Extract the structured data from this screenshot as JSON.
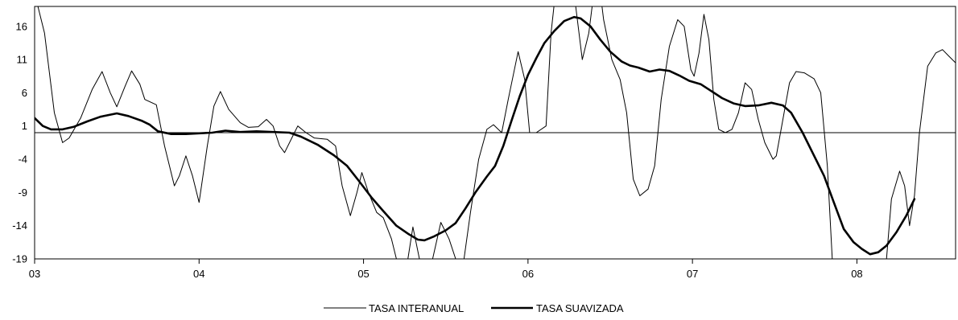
{
  "chart_data": {
    "type": "line",
    "title": "",
    "xlabel": "",
    "ylabel": "",
    "xlim": [
      2003.0,
      2008.6
    ],
    "ylim": [
      -19,
      19
    ],
    "yticks": [
      16,
      11,
      6,
      1,
      -4,
      -9,
      -14,
      -19
    ],
    "xticks": [
      {
        "value": 2003.0,
        "label": "03"
      },
      {
        "value": 2004.0,
        "label": "04"
      },
      {
        "value": 2005.0,
        "label": "05"
      },
      {
        "value": 2006.0,
        "label": "06"
      },
      {
        "value": 2007.0,
        "label": "07"
      },
      {
        "value": 2008.0,
        "label": "08"
      }
    ],
    "reference_line": 0,
    "legend_position": "bottom-center",
    "series": [
      {
        "name": "TASA INTERANUAL",
        "style": "thin",
        "points": [
          [
            2003.0,
            21
          ],
          [
            2003.06,
            15
          ],
          [
            2003.12,
            3
          ],
          [
            2003.17,
            -1.5
          ],
          [
            2003.21,
            -0.8
          ],
          [
            2003.28,
            2.2
          ],
          [
            2003.35,
            6.5
          ],
          [
            2003.41,
            9.2
          ],
          [
            2003.46,
            6
          ],
          [
            2003.5,
            3.9
          ],
          [
            2003.55,
            7
          ],
          [
            2003.59,
            9.3
          ],
          [
            2003.64,
            7.3
          ],
          [
            2003.67,
            5
          ],
          [
            2003.74,
            4.2
          ],
          [
            2003.79,
            -2
          ],
          [
            2003.85,
            -8
          ],
          [
            2003.88,
            -6.5
          ],
          [
            2003.92,
            -3.5
          ],
          [
            2003.96,
            -6.5
          ],
          [
            2004.0,
            -10.5
          ],
          [
            2004.05,
            -2
          ],
          [
            2004.09,
            4
          ],
          [
            2004.13,
            6.2
          ],
          [
            2004.18,
            3.5
          ],
          [
            2004.25,
            1.5
          ],
          [
            2004.3,
            0.8
          ],
          [
            2004.36,
            0.9
          ],
          [
            2004.41,
            2
          ],
          [
            2004.45,
            1
          ],
          [
            2004.49,
            -2
          ],
          [
            2004.52,
            -3
          ],
          [
            2004.57,
            -0.5
          ],
          [
            2004.6,
            1
          ],
          [
            2004.65,
            0
          ],
          [
            2004.7,
            -0.8
          ],
          [
            2004.78,
            -1
          ],
          [
            2004.83,
            -2
          ],
          [
            2004.87,
            -8
          ],
          [
            2004.92,
            -12.5
          ],
          [
            2004.96,
            -9
          ],
          [
            2004.99,
            -6
          ],
          [
            2005.03,
            -9
          ],
          [
            2005.08,
            -12
          ],
          [
            2005.12,
            -12.8
          ],
          [
            2005.17,
            -16
          ],
          [
            2005.2,
            -19
          ],
          [
            2005.24,
            -26
          ],
          [
            2005.27,
            -19
          ],
          [
            2005.3,
            -14.2
          ],
          [
            2005.34,
            -19
          ],
          [
            2005.38,
            -25
          ],
          [
            2005.42,
            -19
          ],
          [
            2005.47,
            -13.5
          ],
          [
            2005.52,
            -16
          ],
          [
            2005.56,
            -19
          ],
          [
            2005.6,
            -21
          ],
          [
            2005.65,
            -12
          ],
          [
            2005.7,
            -4
          ],
          [
            2005.75,
            0.5
          ],
          [
            2005.79,
            1.2
          ],
          [
            2005.84,
            0
          ],
          [
            2005.88,
            5
          ],
          [
            2005.94,
            12.2
          ],
          [
            2005.98,
            8
          ],
          [
            2006.01,
            0
          ],
          [
            2006.05,
            0
          ],
          [
            2006.11,
            1
          ],
          [
            2006.14,
            15
          ],
          [
            2006.18,
            24
          ],
          [
            2006.23,
            30
          ],
          [
            2006.28,
            21
          ],
          [
            2006.33,
            11
          ],
          [
            2006.37,
            15
          ],
          [
            2006.42,
            25
          ],
          [
            2006.46,
            17
          ],
          [
            2006.51,
            11
          ],
          [
            2006.56,
            8
          ],
          [
            2006.6,
            3
          ],
          [
            2006.64,
            -7
          ],
          [
            2006.68,
            -9.5
          ],
          [
            2006.73,
            -8.5
          ],
          [
            2006.77,
            -5
          ],
          [
            2006.81,
            5
          ],
          [
            2006.86,
            13
          ],
          [
            2006.91,
            17
          ],
          [
            2006.95,
            16
          ],
          [
            2006.99,
            9.5
          ],
          [
            2007.01,
            8.5
          ],
          [
            2007.04,
            12
          ],
          [
            2007.07,
            17.8
          ],
          [
            2007.1,
            14
          ],
          [
            2007.13,
            5
          ],
          [
            2007.16,
            0.5
          ],
          [
            2007.2,
            0
          ],
          [
            2007.24,
            0.5
          ],
          [
            2007.28,
            3
          ],
          [
            2007.32,
            7.5
          ],
          [
            2007.36,
            6.5
          ],
          [
            2007.4,
            2
          ],
          [
            2007.44,
            -1.5
          ],
          [
            2007.49,
            -4
          ],
          [
            2007.51,
            -3.5
          ],
          [
            2007.55,
            2
          ],
          [
            2007.59,
            7.5
          ],
          [
            2007.63,
            9.2
          ],
          [
            2007.68,
            9
          ],
          [
            2007.74,
            8.1
          ],
          [
            2007.78,
            6
          ],
          [
            2007.82,
            -5
          ],
          [
            2007.85,
            -19
          ],
          [
            2007.9,
            -30
          ],
          [
            2008.1,
            -28
          ],
          [
            2008.18,
            -19
          ],
          [
            2008.21,
            -10
          ],
          [
            2008.26,
            -5.8
          ],
          [
            2008.29,
            -8
          ],
          [
            2008.32,
            -14
          ],
          [
            2008.35,
            -9.5
          ],
          [
            2008.38,
            0
          ],
          [
            2008.43,
            10
          ],
          [
            2008.48,
            12
          ],
          [
            2008.52,
            12.5
          ],
          [
            2008.56,
            11.5
          ],
          [
            2008.6,
            10.5
          ]
        ]
      },
      {
        "name": "TASA SUAVIZADA",
        "style": "thick",
        "points": [
          [
            2003.0,
            2.2
          ],
          [
            2003.05,
            1
          ],
          [
            2003.1,
            0.5
          ],
          [
            2003.17,
            0.5
          ],
          [
            2003.24,
            0.9
          ],
          [
            2003.32,
            1.7
          ],
          [
            2003.4,
            2.4
          ],
          [
            2003.5,
            2.9
          ],
          [
            2003.57,
            2.5
          ],
          [
            2003.65,
            1.8
          ],
          [
            2003.7,
            1.2
          ],
          [
            2003.75,
            0.2
          ],
          [
            2003.83,
            -0.2
          ],
          [
            2003.92,
            -0.2
          ],
          [
            2004.0,
            -0.1
          ],
          [
            2004.08,
            0
          ],
          [
            2004.16,
            0.3
          ],
          [
            2004.25,
            0.1
          ],
          [
            2004.35,
            0.2
          ],
          [
            2004.45,
            0.1
          ],
          [
            2004.55,
            0
          ],
          [
            2004.62,
            -0.6
          ],
          [
            2004.72,
            -1.8
          ],
          [
            2004.82,
            -3.4
          ],
          [
            2004.9,
            -5
          ],
          [
            2004.97,
            -7.2
          ],
          [
            2005.05,
            -9.8
          ],
          [
            2005.12,
            -11.8
          ],
          [
            2005.2,
            -14
          ],
          [
            2005.27,
            -15.2
          ],
          [
            2005.33,
            -16.1
          ],
          [
            2005.37,
            -16.2
          ],
          [
            2005.43,
            -15.6
          ],
          [
            2005.5,
            -14.7
          ],
          [
            2005.56,
            -13.6
          ],
          [
            2005.62,
            -11.4
          ],
          [
            2005.68,
            -9
          ],
          [
            2005.75,
            -6.6
          ],
          [
            2005.8,
            -5
          ],
          [
            2005.85,
            -2
          ],
          [
            2005.9,
            1.8
          ],
          [
            2005.95,
            5.5
          ],
          [
            2006.0,
            8.7
          ],
          [
            2006.05,
            11.2
          ],
          [
            2006.1,
            13.5
          ],
          [
            2006.16,
            15.3
          ],
          [
            2006.22,
            16.8
          ],
          [
            2006.28,
            17.4
          ],
          [
            2006.32,
            17.2
          ],
          [
            2006.38,
            16
          ],
          [
            2006.44,
            14
          ],
          [
            2006.5,
            12.2
          ],
          [
            2006.57,
            10.7
          ],
          [
            2006.62,
            10.1
          ],
          [
            2006.67,
            9.8
          ],
          [
            2006.74,
            9.2
          ],
          [
            2006.8,
            9.5
          ],
          [
            2006.86,
            9.3
          ],
          [
            2006.92,
            8.6
          ],
          [
            2006.98,
            7.8
          ],
          [
            2007.05,
            7.3
          ],
          [
            2007.1,
            6.5
          ],
          [
            2007.18,
            5.2
          ],
          [
            2007.25,
            4.4
          ],
          [
            2007.32,
            4
          ],
          [
            2007.4,
            4.1
          ],
          [
            2007.48,
            4.5
          ],
          [
            2007.55,
            4.1
          ],
          [
            2007.6,
            3
          ],
          [
            2007.67,
            0
          ],
          [
            2007.73,
            -3
          ],
          [
            2007.8,
            -6.5
          ],
          [
            2007.86,
            -10.5
          ],
          [
            2007.92,
            -14.5
          ],
          [
            2007.98,
            -16.5
          ],
          [
            2008.03,
            -17.5
          ],
          [
            2008.08,
            -18.3
          ],
          [
            2008.13,
            -18
          ],
          [
            2008.18,
            -17
          ],
          [
            2008.24,
            -15
          ],
          [
            2008.3,
            -12.5
          ],
          [
            2008.35,
            -10
          ]
        ]
      }
    ]
  }
}
